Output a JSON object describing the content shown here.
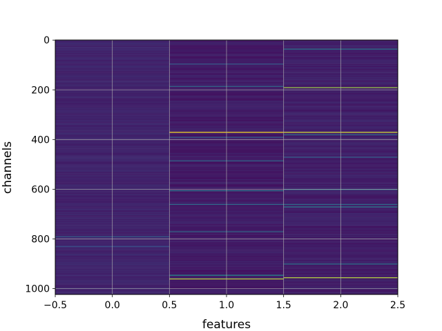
{
  "chart_data": {
    "type": "heatmap",
    "title": "",
    "xlabel": "features",
    "ylabel": "channels",
    "xlim": [
      -0.5,
      2.5
    ],
    "ylim": [
      1023.5,
      -0.5
    ],
    "x_ticks": [
      -0.5,
      0.0,
      0.5,
      1.0,
      1.5,
      2.0,
      2.5
    ],
    "x_tick_labels": [
      "−0.5",
      "0.0",
      "0.5",
      "1.0",
      "1.5",
      "2.0",
      "2.5"
    ],
    "y_ticks": [
      0,
      200,
      400,
      600,
      800,
      1000
    ],
    "y_tick_labels": [
      "0",
      "200",
      "400",
      "600",
      "800",
      "1000"
    ],
    "grid": true,
    "colormap": "viridis",
    "n_rows": 1024,
    "n_cols": 3,
    "column_background": [
      0.08,
      0.05,
      0.06
    ],
    "column_noise": [
      0.05,
      0.06,
      0.06
    ],
    "highlighted_rows": [
      {
        "col": 0,
        "row": 790,
        "value": 0.3
      },
      {
        "col": 0,
        "row": 830,
        "value": 0.25
      },
      {
        "col": 1,
        "row": 95,
        "value": 0.3
      },
      {
        "col": 1,
        "row": 185,
        "value": 0.35
      },
      {
        "col": 1,
        "row": 370,
        "value": 1.0
      },
      {
        "col": 1,
        "row": 390,
        "value": 0.3
      },
      {
        "col": 1,
        "row": 485,
        "value": 0.35
      },
      {
        "col": 1,
        "row": 605,
        "value": 0.4
      },
      {
        "col": 1,
        "row": 660,
        "value": 0.35
      },
      {
        "col": 1,
        "row": 770,
        "value": 0.35
      },
      {
        "col": 1,
        "row": 945,
        "value": 0.5
      },
      {
        "col": 1,
        "row": 960,
        "value": 0.9
      },
      {
        "col": 2,
        "row": 35,
        "value": 0.4
      },
      {
        "col": 2,
        "row": 190,
        "value": 0.85
      },
      {
        "col": 2,
        "row": 370,
        "value": 0.95
      },
      {
        "col": 2,
        "row": 380,
        "value": 0.35
      },
      {
        "col": 2,
        "row": 470,
        "value": 0.3
      },
      {
        "col": 2,
        "row": 600,
        "value": 0.4
      },
      {
        "col": 2,
        "row": 660,
        "value": 0.35
      },
      {
        "col": 2,
        "row": 670,
        "value": 0.4
      },
      {
        "col": 2,
        "row": 900,
        "value": 0.4
      },
      {
        "col": 2,
        "row": 955,
        "value": 0.9
      }
    ]
  }
}
